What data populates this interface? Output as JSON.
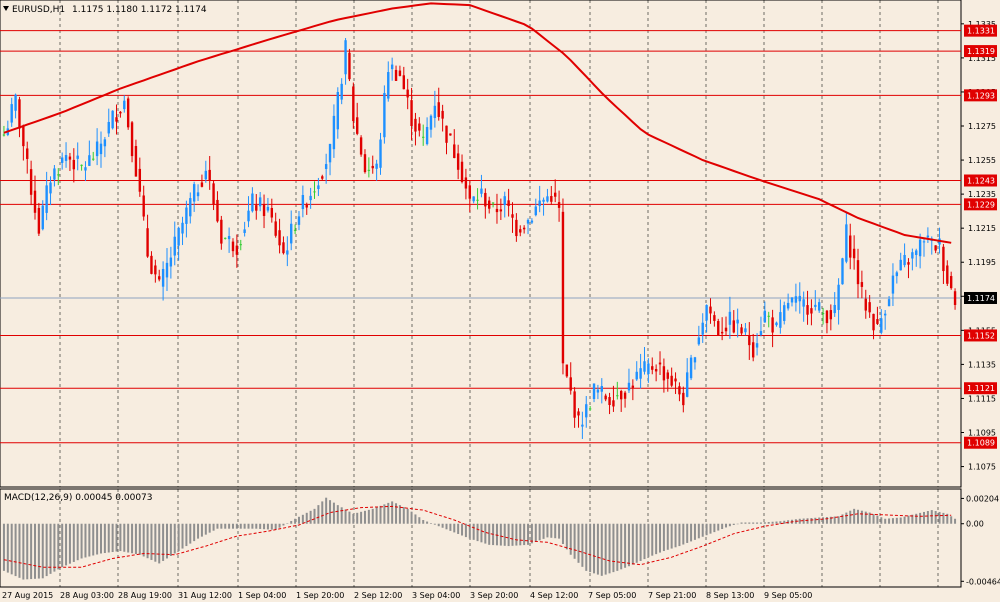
{
  "header": {
    "symbol": "EURUSD,H1",
    "ohlc": "1.1175 1.1180 1.1172 1.1174"
  },
  "indicator": {
    "label": "MACD(12,26,9) 0.00045 0.00073"
  },
  "colors": {
    "background": "#f7ede0",
    "grid": "#000000",
    "bull": "#1e90ff",
    "bear": "#e00000",
    "doji": "#32cd32",
    "level_line": "#e00000",
    "ma": "#e00000",
    "histogram": "#8f8f8f",
    "signal": "#e00000",
    "current_price_line": "#8fa3bf"
  },
  "chart_data": [
    {
      "type": "candlestick",
      "timeframe": "H1",
      "y_axis": {
        "range": [
          1.1063,
          1.1349
        ],
        "ticks": [
          "1.1335",
          "1.1315",
          "1.1295",
          "1.1275",
          "1.1255",
          "1.1235",
          "1.1215",
          "1.1195",
          "1.1175",
          "1.1155",
          "1.1135",
          "1.1115",
          "1.1095",
          "1.1075"
        ]
      },
      "x_axis": {
        "tick_labels": [
          "27 Aug 2015",
          "28 Aug 03:00",
          "28 Aug 19:00",
          "31 Aug 12:00",
          "1 Sep 04:00",
          "1 Sep 20:00",
          "2 Sep 12:00",
          "3 Sep 04:00",
          "3 Sep 20:00",
          "4 Sep 12:00",
          "7 Sep 05:00",
          "7 Sep 21:00",
          "8 Sep 13:00",
          "9 Sep 05:00"
        ]
      },
      "levels": [
        "1.1331",
        "1.1319",
        "1.1293",
        "1.1243",
        "1.1229",
        "1.1152",
        "1.1121",
        "1.1089"
      ],
      "current_price": "1.1174",
      "price_path": [
        [
          0,
          1.127
        ],
        [
          3,
          1.129
        ],
        [
          6,
          1.125
        ],
        [
          9,
          1.1215
        ],
        [
          12,
          1.1245
        ],
        [
          16,
          1.1258
        ],
        [
          20,
          1.125
        ],
        [
          24,
          1.126
        ],
        [
          28,
          1.128
        ],
        [
          31,
          1.129
        ],
        [
          34,
          1.125
        ],
        [
          37,
          1.12
        ],
        [
          40,
          1.118
        ],
        [
          44,
          1.1205
        ],
        [
          48,
          1.123
        ],
        [
          52,
          1.125
        ],
        [
          56,
          1.121
        ],
        [
          60,
          1.1205
        ],
        [
          64,
          1.123
        ],
        [
          68,
          1.1225
        ],
        [
          72,
          1.12
        ],
        [
          76,
          1.1225
        ],
        [
          80,
          1.124
        ],
        [
          84,
          1.126
        ],
        [
          88,
          1.132
        ],
        [
          90,
          1.128
        ],
        [
          93,
          1.125
        ],
        [
          96,
          1.125
        ],
        [
          99,
          1.131
        ],
        [
          102,
          1.1305
        ],
        [
          105,
          1.128
        ],
        [
          108,
          1.1265
        ],
        [
          111,
          1.129
        ],
        [
          114,
          1.127
        ],
        [
          117,
          1.1255
        ],
        [
          120,
          1.123
        ],
        [
          123,
          1.1235
        ],
        [
          126,
          1.1225
        ],
        [
          129,
          1.123
        ],
        [
          132,
          1.1215
        ],
        [
          135,
          1.122
        ],
        [
          138,
          1.123
        ],
        [
          141,
          1.1235
        ],
        [
          143,
          1.1225
        ],
        [
          144,
          1.1133
        ],
        [
          146,
          1.1118
        ],
        [
          148,
          1.11
        ],
        [
          150,
          1.1108
        ],
        [
          152,
          1.112
        ],
        [
          156,
          1.1115
        ],
        [
          160,
          1.112
        ],
        [
          164,
          1.113
        ],
        [
          168,
          1.1135
        ],
        [
          172,
          1.1125
        ],
        [
          175,
          1.1115
        ],
        [
          178,
          1.1145
        ],
        [
          181,
          1.117
        ],
        [
          184,
          1.1155
        ],
        [
          187,
          1.116
        ],
        [
          190,
          1.1155
        ],
        [
          193,
          1.1145
        ],
        [
          196,
          1.1165
        ],
        [
          199,
          1.1155
        ],
        [
          202,
          1.1172
        ],
        [
          205,
          1.117
        ],
        [
          208,
          1.117
        ],
        [
          211,
          1.1165
        ],
        [
          214,
          1.1165
        ],
        [
          217,
          1.1212
        ],
        [
          219,
          1.1195
        ],
        [
          221,
          1.1175
        ],
        [
          223,
          1.1165
        ],
        [
          225,
          1.1155
        ],
        [
          227,
          1.117
        ],
        [
          229,
          1.1185
        ],
        [
          232,
          1.1195
        ],
        [
          235,
          1.12
        ],
        [
          237,
          1.121
        ],
        [
          239,
          1.1205
        ],
        [
          241,
          1.1205
        ],
        [
          243,
          1.1185
        ],
        [
          245,
          1.1174
        ]
      ],
      "moving_average": [
        [
          0,
          1.1271
        ],
        [
          15,
          1.1283
        ],
        [
          30,
          1.1297
        ],
        [
          50,
          1.1313
        ],
        [
          70,
          1.1327
        ],
        [
          85,
          1.1337
        ],
        [
          100,
          1.1344
        ],
        [
          110,
          1.1347
        ],
        [
          120,
          1.1346
        ],
        [
          135,
          1.1334
        ],
        [
          145,
          1.1316
        ],
        [
          155,
          1.1292
        ],
        [
          165,
          1.1271
        ],
        [
          180,
          1.1255
        ],
        [
          195,
          1.1243
        ],
        [
          210,
          1.1232
        ],
        [
          220,
          1.1221
        ],
        [
          232,
          1.1211
        ],
        [
          245,
          1.1206
        ]
      ]
    },
    {
      "type": "macd",
      "params": "12,26,9",
      "y_axis": {
        "ticks": [
          "0.00204",
          "0.00",
          "-0.00464"
        ],
        "range": [
          -0.0051,
          0.0028
        ]
      },
      "histogram": [
        [
          0,
          -0.0038
        ],
        [
          5,
          -0.0045
        ],
        [
          10,
          -0.0044
        ],
        [
          15,
          -0.0035
        ],
        [
          20,
          -0.0028
        ],
        [
          25,
          -0.0024
        ],
        [
          30,
          -0.0022
        ],
        [
          35,
          -0.0025
        ],
        [
          40,
          -0.0032
        ],
        [
          45,
          -0.0022
        ],
        [
          50,
          -0.0012
        ],
        [
          55,
          -0.0004
        ],
        [
          60,
          -0.0004
        ],
        [
          65,
          -0.0004
        ],
        [
          70,
          -0.0005
        ],
        [
          75,
          0.0004
        ],
        [
          80,
          0.0012
        ],
        [
          83,
          0.0021
        ],
        [
          86,
          0.0015
        ],
        [
          90,
          0.0008
        ],
        [
          95,
          0.0012
        ],
        [
          100,
          0.0018
        ],
        [
          104,
          0.0012
        ],
        [
          108,
          0.0003
        ],
        [
          112,
          -0.0002
        ],
        [
          116,
          -0.0007
        ],
        [
          120,
          -0.0012
        ],
        [
          125,
          -0.0017
        ],
        [
          130,
          -0.0018
        ],
        [
          135,
          -0.0017
        ],
        [
          140,
          -0.0011
        ],
        [
          143,
          -0.0012
        ],
        [
          146,
          -0.0025
        ],
        [
          150,
          -0.0038
        ],
        [
          154,
          -0.0042
        ],
        [
          158,
          -0.0038
        ],
        [
          162,
          -0.0033
        ],
        [
          166,
          -0.0027
        ],
        [
          170,
          -0.0022
        ],
        [
          174,
          -0.0018
        ],
        [
          178,
          -0.0013
        ],
        [
          182,
          -0.0008
        ],
        [
          186,
          -0.0003
        ],
        [
          190,
          0.0001
        ],
        [
          195,
          0.0001
        ],
        [
          200,
          0.0002
        ],
        [
          205,
          0.0004
        ],
        [
          210,
          0.0005
        ],
        [
          215,
          0.0006
        ],
        [
          219,
          0.0012
        ],
        [
          223,
          0.0009
        ],
        [
          227,
          0.0004
        ],
        [
          231,
          0.0005
        ],
        [
          235,
          0.0008
        ],
        [
          239,
          0.0011
        ],
        [
          243,
          0.0008
        ],
        [
          245,
          0.0004
        ]
      ],
      "signal": [
        [
          0,
          -0.0029
        ],
        [
          10,
          -0.0035
        ],
        [
          20,
          -0.0035
        ],
        [
          28,
          -0.0028
        ],
        [
          36,
          -0.0024
        ],
        [
          44,
          -0.0025
        ],
        [
          52,
          -0.0018
        ],
        [
          60,
          -0.001
        ],
        [
          68,
          -0.0006
        ],
        [
          76,
          -0.0001
        ],
        [
          84,
          0.0009
        ],
        [
          92,
          0.0013
        ],
        [
          100,
          0.0014
        ],
        [
          108,
          0.0011
        ],
        [
          116,
          0.0003
        ],
        [
          124,
          -0.0007
        ],
        [
          132,
          -0.0013
        ],
        [
          140,
          -0.0015
        ],
        [
          148,
          -0.0022
        ],
        [
          156,
          -0.003
        ],
        [
          164,
          -0.0033
        ],
        [
          172,
          -0.0027
        ],
        [
          180,
          -0.0018
        ],
        [
          188,
          -0.0008
        ],
        [
          196,
          -0.0002
        ],
        [
          204,
          0.0002
        ],
        [
          212,
          0.0004
        ],
        [
          220,
          0.0008
        ],
        [
          228,
          0.0007
        ],
        [
          236,
          0.0006
        ],
        [
          245,
          0.0007
        ]
      ]
    }
  ]
}
